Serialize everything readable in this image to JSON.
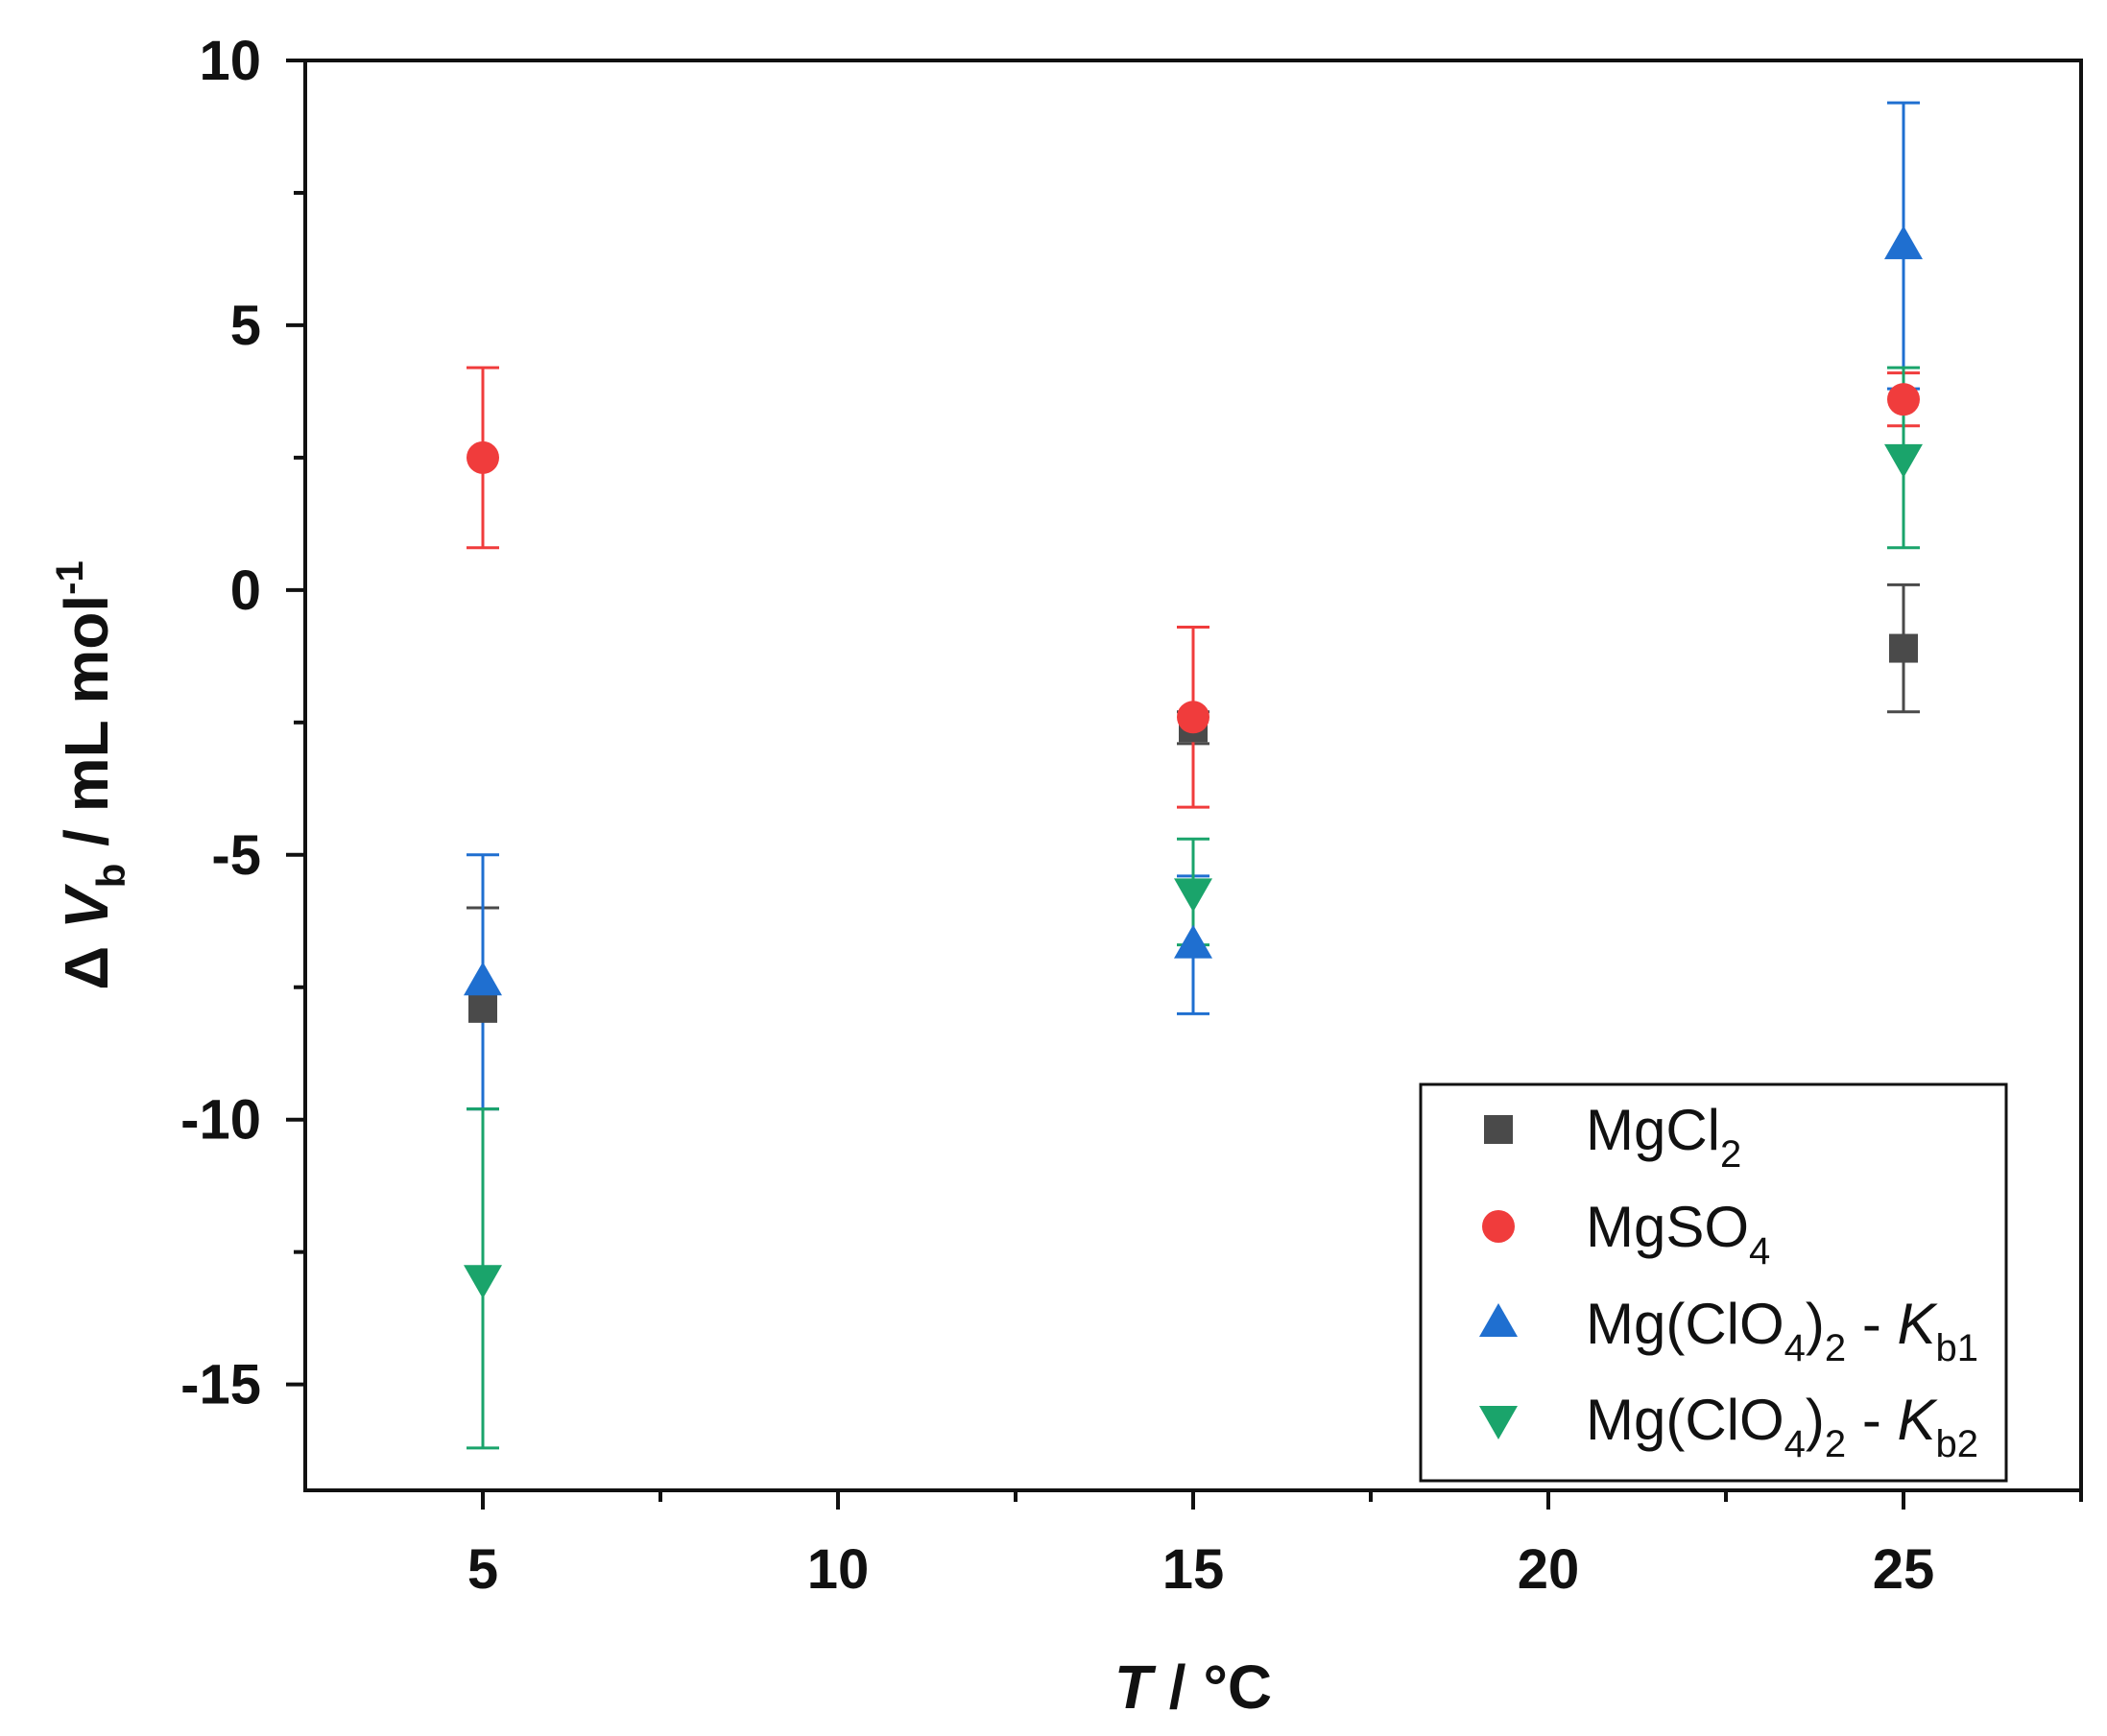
{
  "chart_data": {
    "type": "scatter",
    "xlabel": {
      "symbol": "T",
      "unit": " / °C"
    },
    "ylabel": {
      "prefix": "Δ",
      "symbol": "V",
      "subscript": "b",
      "unit": " / mL mol",
      "superscript": "-1"
    },
    "xlim": [
      2.5,
      27.5
    ],
    "ylim": [
      -17,
      10
    ],
    "x_ticks": [
      5,
      10,
      15,
      20,
      25
    ],
    "y_ticks": [
      10,
      5,
      0,
      -5,
      -10,
      -15
    ],
    "x_tick_labels": [
      "5",
      "10",
      "15",
      "20",
      "25"
    ],
    "y_tick_labels": [
      "10",
      "5",
      "0",
      "-5",
      "-10",
      "-15"
    ],
    "legend_position": "bottom-right",
    "series": [
      {
        "name": "MgCl2",
        "label": {
          "base": "MgCl",
          "sub1": "2",
          "mid": "",
          "italic": "",
          "sub2": ""
        },
        "marker": "square",
        "color": "#4a4a4a",
        "points": [
          {
            "x": 5,
            "y": -7.9,
            "err": 1.9
          },
          {
            "x": 15,
            "y": -2.6,
            "err": 0.3
          },
          {
            "x": 25,
            "y": -1.1,
            "err": 1.2
          }
        ]
      },
      {
        "name": "MgSO4",
        "label": {
          "base": "MgSO",
          "sub1": "4",
          "mid": "",
          "italic": "",
          "sub2": ""
        },
        "marker": "circle",
        "color": "#f03c3c",
        "points": [
          {
            "x": 5,
            "y": 2.5,
            "err": 1.7
          },
          {
            "x": 15,
            "y": -2.4,
            "err": 1.7
          },
          {
            "x": 25,
            "y": 3.6,
            "err": 0.5
          }
        ]
      },
      {
        "name": "Mg(ClO4)2 - Kb1",
        "label": {
          "base": "Mg(ClO",
          "sub1": "4",
          "mid": ")₂ - ",
          "italic": "K",
          "sub2": "b1"
        },
        "marker": "triangle-up",
        "color": "#1f6fd0",
        "points": [
          {
            "x": 5,
            "y": -7.4,
            "err": 2.4
          },
          {
            "x": 15,
            "y": -6.7,
            "err": 1.3
          },
          {
            "x": 25,
            "y": 6.5,
            "err": 2.7
          }
        ]
      },
      {
        "name": "Mg(ClO4)2 - Kb2",
        "label": {
          "base": "Mg(ClO",
          "sub1": "4",
          "mid": ")₂ - ",
          "italic": "K",
          "sub2": "b2"
        },
        "marker": "triangle-down",
        "color": "#1aa46b",
        "points": [
          {
            "x": 5,
            "y": -13.0,
            "err": 3.2
          },
          {
            "x": 15,
            "y": -5.7,
            "err": 1.0
          },
          {
            "x": 25,
            "y": 2.5,
            "err": 1.7
          }
        ]
      }
    ]
  }
}
